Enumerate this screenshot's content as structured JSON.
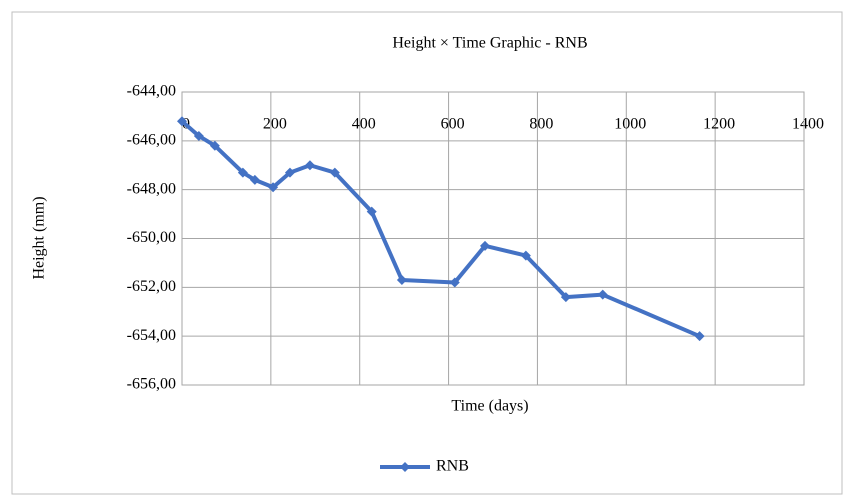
{
  "chart_data": {
    "type": "line",
    "title": "Height × Time Graphic - RNB",
    "x_label": "Time (days)",
    "y_label": "Height (mm)",
    "x": [
      0,
      38,
      74,
      137,
      164,
      205,
      243,
      288,
      344,
      427,
      495,
      614,
      682,
      774,
      864,
      947,
      1165
    ],
    "series": [
      {
        "name": "RNB",
        "color": "#4472c4",
        "values": [
          -645.2,
          -645.8,
          -646.2,
          -647.3,
          -647.6,
          -647.9,
          -647.3,
          -647.0,
          -647.3,
          -648.9,
          -651.7,
          -651.8,
          -650.3,
          -650.7,
          -652.4,
          -652.3,
          -654.0
        ]
      }
    ],
    "xlim": [
      0,
      1400
    ],
    "xticks": [
      0,
      200,
      400,
      600,
      800,
      1000,
      1200,
      1400
    ],
    "ylim": [
      -656,
      -644
    ],
    "yticks": [
      {
        "value": -644,
        "label": "-644,00"
      },
      {
        "value": -646,
        "label": "-646,00"
      },
      {
        "value": -648,
        "label": "-648,00"
      },
      {
        "value": -650,
        "label": "-650,00"
      },
      {
        "value": -652,
        "label": "-652,00"
      },
      {
        "value": -654,
        "label": "-654,00"
      },
      {
        "value": -656,
        "label": "-656,00"
      }
    ],
    "grid": true,
    "legend": "bottom"
  }
}
